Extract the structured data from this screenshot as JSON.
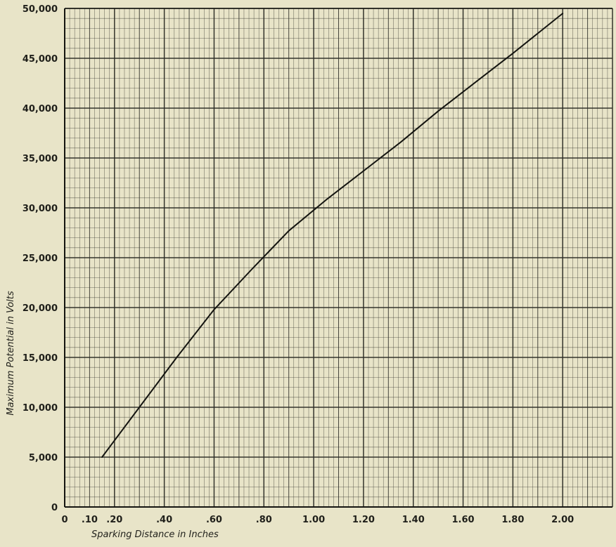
{
  "chart_data": {
    "type": "line",
    "title": "",
    "xlabel": "Sparking Distance in Inches",
    "ylabel": "Maximum Potential in Volts",
    "xlim": [
      0,
      2.2
    ],
    "ylim": [
      0,
      50000
    ],
    "grid": true,
    "x_ticks": [
      0,
      0.1,
      0.2,
      0.4,
      0.6,
      0.8,
      1.0,
      1.2,
      1.4,
      1.6,
      1.8,
      2.0
    ],
    "x_tick_labels": [
      "0",
      ".10",
      ".20",
      ".40",
      ".60",
      ".80",
      "1.00",
      "1.20",
      "1.40",
      "1.60",
      "1.80",
      "2.00"
    ],
    "y_ticks": [
      0,
      5000,
      10000,
      15000,
      20000,
      25000,
      30000,
      35000,
      40000,
      45000,
      50000
    ],
    "y_tick_labels": [
      "0",
      "5,000",
      "10,000",
      "15,000",
      "20,000",
      "25,000",
      "30,000",
      "35,000",
      "40,000",
      "45,000",
      "50,000"
    ],
    "series": [
      {
        "x": [
          0.15,
          0.3,
          0.45,
          0.6,
          0.75,
          0.9,
          1.05,
          1.2,
          1.35,
          1.5,
          1.65,
          1.8,
          2.0
        ],
        "y": [
          5000,
          10000,
          15000,
          19800,
          23800,
          27700,
          30800,
          33700,
          36600,
          39700,
          42600,
          45500,
          49500
        ]
      }
    ],
    "colors": {
      "background": "#e8e4c8",
      "grid": "#2a2a24",
      "line": "#141410"
    }
  }
}
